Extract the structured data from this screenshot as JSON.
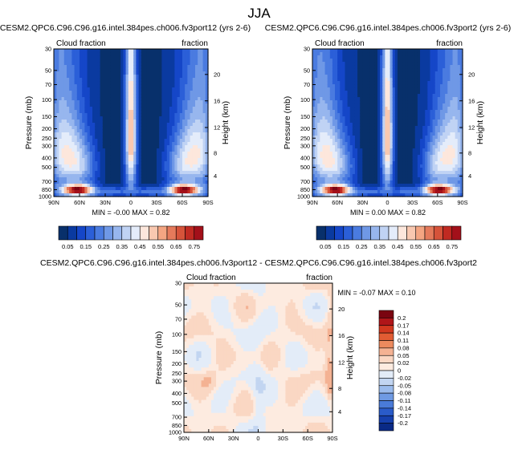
{
  "page": {
    "season": "JJA"
  },
  "chart_data": [
    {
      "type": "heatmap",
      "title": "CESM2.QPC6.C96.C96.g16.intel.384pes.ch006.fv3port12 (yrs 2-6)",
      "left_label": "Cloud fraction",
      "right_label": "fraction",
      "ylabel": "Pressure (mb)",
      "y2label": "Height (km)",
      "x_ticks": [
        "90N",
        "60N",
        "30N",
        "0",
        "30S",
        "60S",
        "90S"
      ],
      "y_ticks": [
        "30",
        "50",
        "70",
        "100",
        "150",
        "200",
        "250",
        "300",
        "400",
        "500",
        "700",
        "850",
        "1000"
      ],
      "y2_ticks": [
        "20",
        "16",
        "12",
        "8",
        "4"
      ],
      "ylim": [
        30,
        1000
      ],
      "y_scale": "log",
      "stats": {
        "min_label": "MIN =",
        "min": "-0.00",
        "max_label": "MAX =",
        "max": "0.82"
      },
      "colorbar": {
        "orientation": "horizontal",
        "labels": [
          "0.05",
          "0.15",
          "0.25",
          "0.35",
          "0.45",
          "0.55",
          "0.65",
          "0.75"
        ]
      }
    },
    {
      "type": "heatmap",
      "title": "CESM2.QPC6.C96.C96.g16.intel.384pes.ch006.fv3port2 (yrs 2-6)",
      "left_label": "Cloud fraction",
      "right_label": "fraction",
      "ylabel": "Pressure (mb)",
      "y2label": "Height (km)",
      "x_ticks": [
        "90N",
        "60N",
        "30N",
        "0",
        "30S",
        "60S",
        "90S"
      ],
      "y_ticks": [
        "30",
        "50",
        "70",
        "100",
        "150",
        "200",
        "250",
        "300",
        "400",
        "500",
        "700",
        "850",
        "1000"
      ],
      "y2_ticks": [
        "20",
        "16",
        "12",
        "8",
        "4"
      ],
      "ylim": [
        30,
        1000
      ],
      "y_scale": "log",
      "stats": {
        "min_label": "MIN =",
        "min": "0.00",
        "max_label": "MAX =",
        "max": "0.82"
      },
      "colorbar": {
        "orientation": "horizontal",
        "labels": [
          "0.05",
          "0.15",
          "0.25",
          "0.35",
          "0.45",
          "0.55",
          "0.65",
          "0.75"
        ]
      }
    },
    {
      "type": "heatmap",
      "title": "CESM2.QPC6.C96.C96.g16.intel.384pes.ch006.fv3port12 - CESM2.QPC6.C96.C96.g16.intel.384pes.ch006.fv3port2",
      "left_label": "Cloud fraction",
      "right_label": "fraction",
      "ylabel": "Pressure (mb)",
      "y2label": "Height (km)",
      "x_ticks": [
        "90N",
        "60N",
        "30N",
        "0",
        "30S",
        "60S",
        "90S"
      ],
      "y_ticks": [
        "30",
        "50",
        "70",
        "100",
        "150",
        "200",
        "250",
        "300",
        "400",
        "500",
        "700",
        "850",
        "1000"
      ],
      "y2_ticks": [
        "20",
        "16",
        "12",
        "8",
        "4"
      ],
      "ylim": [
        30,
        1000
      ],
      "y_scale": "log",
      "stats": {
        "min_label": "MIN =",
        "min": "-0.07",
        "max_label": "MAX =",
        "max": "0.10"
      },
      "colorbar": {
        "orientation": "vertical",
        "labels": [
          "0.2",
          "0.17",
          "0.14",
          "0.11",
          "0.08",
          "0.05",
          "0.02",
          "0",
          "-0.02",
          "-0.05",
          "-0.08",
          "-0.11",
          "-0.14",
          "-0.17",
          "-0.2"
        ]
      }
    }
  ],
  "colors": {
    "seq_palette": [
      "#08306b",
      "#0a3aa0",
      "#1546c8",
      "#2b5fd8",
      "#4a7be0",
      "#6f98e6",
      "#97b6ee",
      "#c0d3f4",
      "#e4ecfa",
      "#fde7dc",
      "#f9c8b0",
      "#f4a582",
      "#e57a5b",
      "#d6533a",
      "#c02a22",
      "#a3101a",
      "#7a0410"
    ],
    "div_palette": [
      "#7a0410",
      "#b01519",
      "#d2381f",
      "#e25c33",
      "#ec8a5e",
      "#f4b293",
      "#fad7c3",
      "#fdebe0",
      "#e3ecf8",
      "#c2d5f1",
      "#9bbbec",
      "#6f9ae3",
      "#4a7bd8",
      "#2a5bc9",
      "#1640ad",
      "#0a2a86"
    ]
  }
}
